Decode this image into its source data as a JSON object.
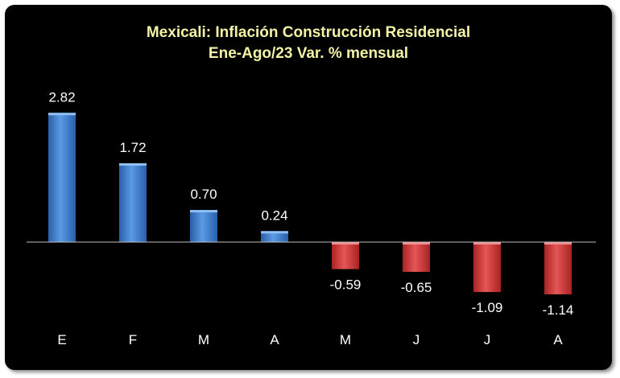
{
  "chart_data": {
    "type": "bar",
    "title": "Mexicali: Inflación Construcción Residencial",
    "subtitle": "Ene-Ago/23 Var. % mensual",
    "categories": [
      "E",
      "F",
      "M",
      "A",
      "M",
      "J",
      "J",
      "A"
    ],
    "values": [
      2.82,
      1.72,
      0.7,
      0.24,
      -0.59,
      -0.65,
      -1.09,
      -1.14
    ],
    "value_labels": [
      "2.82",
      "1.72",
      "0.70",
      "0.24",
      "-0.59",
      "-0.65",
      "-1.09",
      "-1.14"
    ],
    "xlabel": "",
    "ylabel": "",
    "ylim": [
      -1.3,
      3.0
    ],
    "grid": false,
    "legend": "none",
    "colors": {
      "background": "#000000",
      "title": "#f3f3a6",
      "positive": "#3d7fd1",
      "negative": "#d93a3a",
      "axis": "#bfbfbf",
      "text": "#ffffff"
    }
  }
}
